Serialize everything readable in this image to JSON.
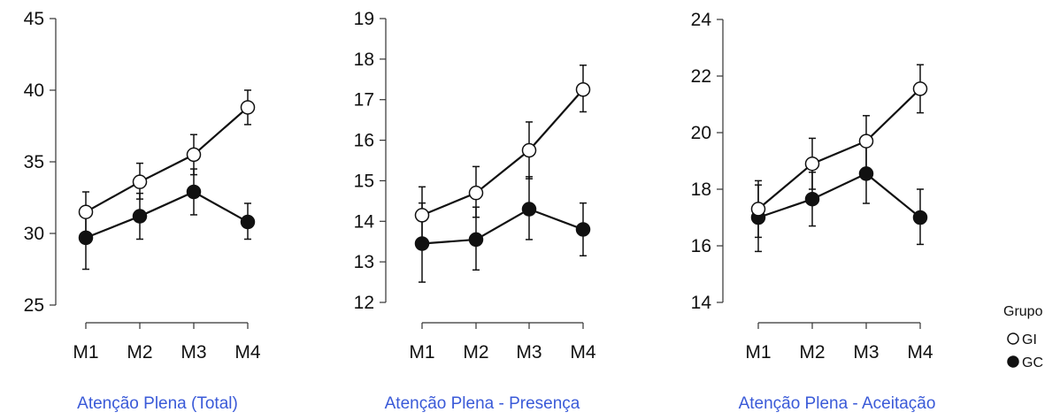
{
  "chart_data": [
    {
      "type": "line",
      "title": "Atenção Plena (Total)",
      "categories": [
        "M1",
        "M2",
        "M3",
        "M4"
      ],
      "yticks": [
        "25",
        "30",
        "35",
        "40",
        "45"
      ],
      "ylim": [
        25,
        45
      ],
      "series": [
        {
          "name": "GI",
          "marker": "open-circle",
          "values": [
            31.5,
            33.6,
            35.5,
            38.8
          ],
          "err_low": [
            30.1,
            32.4,
            34.1,
            37.6
          ],
          "err_high": [
            32.9,
            34.9,
            36.9,
            40.0
          ]
        },
        {
          "name": "GC",
          "marker": "filled-circle",
          "values": [
            29.7,
            31.2,
            32.9,
            30.8
          ],
          "err_low": [
            27.5,
            29.6,
            31.3,
            29.6
          ],
          "err_high": [
            31.8,
            32.8,
            34.5,
            32.1
          ]
        }
      ]
    },
    {
      "type": "line",
      "title": "Atenção Plena - Presença",
      "categories": [
        "M1",
        "M2",
        "M3",
        "M4"
      ],
      "yticks": [
        "12",
        "13",
        "14",
        "15",
        "16",
        "17",
        "18",
        "19"
      ],
      "ylim": [
        12,
        19
      ],
      "series": [
        {
          "name": "GI",
          "marker": "open-circle",
          "values": [
            14.15,
            14.7,
            15.75,
            17.25
          ],
          "err_low": [
            13.5,
            14.1,
            15.05,
            16.7
          ],
          "err_high": [
            14.85,
            15.35,
            16.45,
            17.85
          ]
        },
        {
          "name": "GC",
          "marker": "filled-circle",
          "values": [
            13.45,
            13.55,
            14.3,
            13.8
          ],
          "err_low": [
            12.5,
            12.8,
            13.55,
            13.15
          ],
          "err_high": [
            14.45,
            14.35,
            15.1,
            14.45
          ]
        }
      ]
    },
    {
      "type": "line",
      "title": "Atenção Plena - Aceitação",
      "categories": [
        "M1",
        "M2",
        "M3",
        "M4"
      ],
      "yticks": [
        "14",
        "16",
        "18",
        "20",
        "22",
        "24"
      ],
      "ylim": [
        14,
        24
      ],
      "series": [
        {
          "name": "GI",
          "marker": "open-circle",
          "values": [
            17.3,
            18.9,
            19.7,
            21.55
          ],
          "err_low": [
            16.3,
            18.0,
            18.75,
            20.7
          ],
          "err_high": [
            18.3,
            19.8,
            20.6,
            22.4
          ]
        },
        {
          "name": "GC",
          "marker": "filled-circle",
          "values": [
            17.0,
            17.65,
            18.55,
            17.0
          ],
          "err_low": [
            15.8,
            16.7,
            17.5,
            16.05
          ],
          "err_high": [
            18.15,
            18.6,
            19.6,
            18.0
          ]
        }
      ]
    }
  ],
  "legend": {
    "title": "Grupo",
    "items": [
      {
        "label": "GI",
        "marker": "open-circle"
      },
      {
        "label": "GC",
        "marker": "filled-circle"
      }
    ]
  },
  "colors": {
    "title": "#3a5ad8",
    "ink": "#111111",
    "axis": "#333333"
  }
}
